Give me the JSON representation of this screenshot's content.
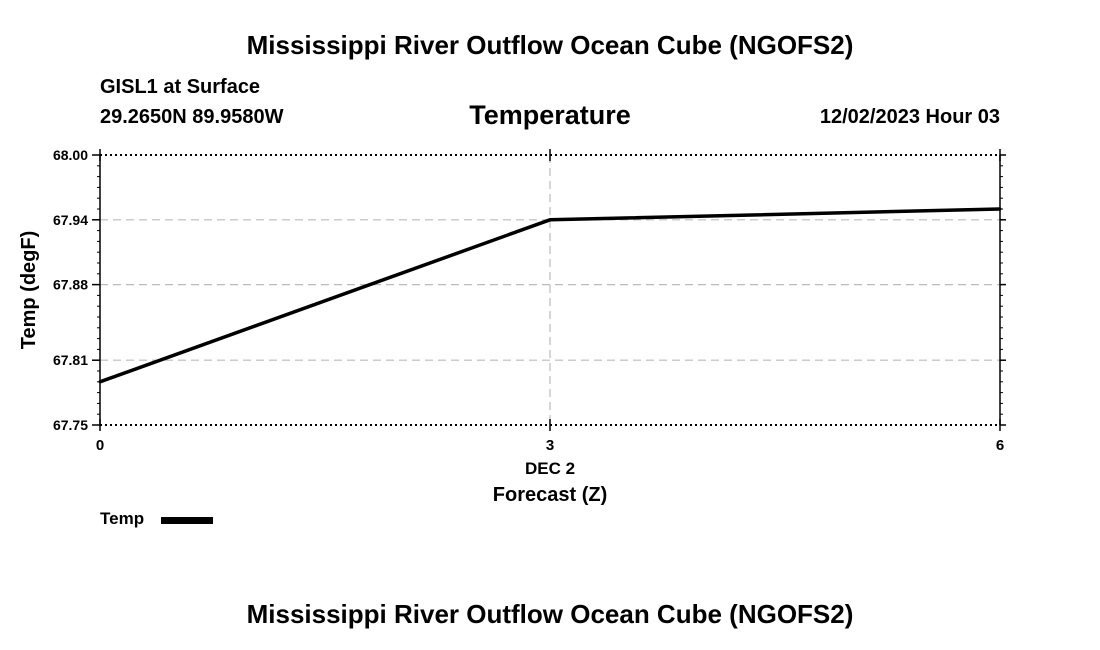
{
  "header": {
    "title": "Mississippi River Outflow Ocean Cube (NGOFS2)",
    "station": "GISL1 at Surface",
    "coords": "29.2650N  89.9580W",
    "variable": "Temperature",
    "datetime": "12/02/2023 Hour 03"
  },
  "footer": {
    "title": "Mississippi River Outflow Ocean Cube (NGOFS2)"
  },
  "legend": {
    "label": "Temp",
    "color": "#000000"
  },
  "chart_data": {
    "type": "line",
    "title": "Temperature",
    "xlabel": "Forecast (Z)",
    "xsublabel": "DEC 2",
    "ylabel": "Temp (degF)",
    "xlim": [
      0,
      6
    ],
    "ylim": [
      67.75,
      68.0
    ],
    "x_ticks": [
      0,
      3,
      6
    ],
    "x_tick_labels": [
      "0",
      "3",
      "6"
    ],
    "y_ticks": [
      67.75,
      67.81,
      67.88,
      67.94,
      68.0
    ],
    "y_tick_labels": [
      "67.75",
      "67.81",
      "67.88",
      "67.94",
      "68.00"
    ],
    "grid": true,
    "series": [
      {
        "name": "Temp",
        "x": [
          0,
          3,
          6
        ],
        "values": [
          67.79,
          67.94,
          67.95
        ]
      }
    ]
  }
}
